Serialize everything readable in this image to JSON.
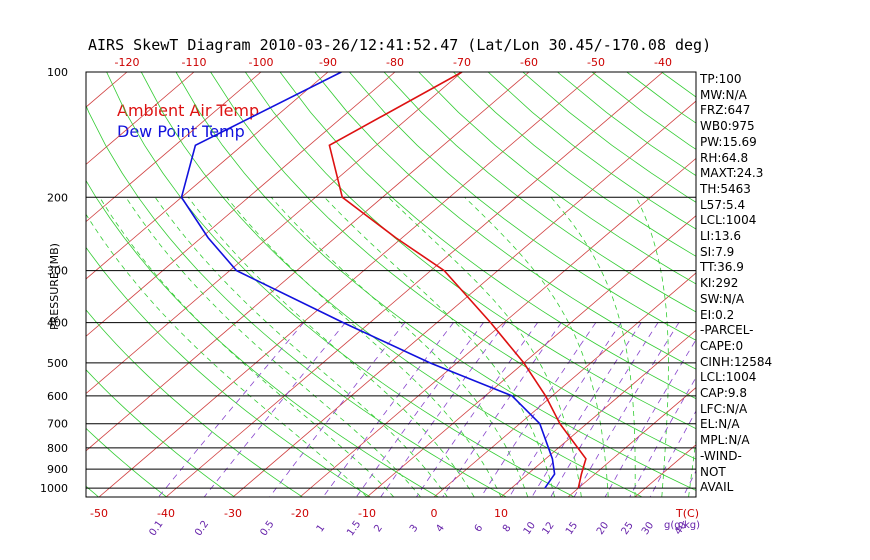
{
  "chart_data": {
    "type": "line",
    "title": "AIRS SkewT Diagram 2010-03-26/12:41:52.47 (Lat/Lon 30.45/-170.08 deg)",
    "ylabel": "PRESSURE (MB)",
    "xlabel": "T(C)",
    "mixing_ratio_label": "g(g/kg)",
    "pressure_ticks": [
      100,
      200,
      300,
      400,
      500,
      600,
      700,
      800,
      900,
      1000
    ],
    "top_temp_ticks": [
      -120,
      -110,
      -100,
      -90,
      -80,
      -70,
      -60,
      -50,
      -40
    ],
    "bottom_temp_ticks": [
      -50,
      -40,
      -30,
      -20,
      -10,
      0,
      10
    ],
    "mixing_ratio_ticks": [
      "0.1",
      "0.2",
      "0.5",
      "1",
      "1.5",
      "2",
      "3",
      "4",
      "6",
      "8",
      "10",
      "12",
      "15",
      "20",
      "25",
      "30",
      "40"
    ],
    "legend": [
      "Ambient Air Temp",
      "Dew Point Temp"
    ],
    "series": [
      {
        "name": "Ambient Air Temp",
        "color": "#dd1111",
        "points": [
          {
            "p": 100,
            "t": -70
          },
          {
            "p": 150,
            "t": -77
          },
          {
            "p": 200,
            "t": -66
          },
          {
            "p": 250,
            "t": -51
          },
          {
            "p": 300,
            "t": -38
          },
          {
            "p": 400,
            "t": -22
          },
          {
            "p": 500,
            "t": -10
          },
          {
            "p": 600,
            "t": -1
          },
          {
            "p": 700,
            "t": 6
          },
          {
            "p": 850,
            "t": 16
          },
          {
            "p": 925,
            "t": 18
          },
          {
            "p": 1000,
            "t": 20
          }
        ]
      },
      {
        "name": "Dew Point Temp",
        "color": "#1111dd",
        "points": [
          {
            "p": 100,
            "t": -88
          },
          {
            "p": 150,
            "t": -97
          },
          {
            "p": 200,
            "t": -90
          },
          {
            "p": 250,
            "t": -79
          },
          {
            "p": 300,
            "t": -69
          },
          {
            "p": 400,
            "t": -44
          },
          {
            "p": 500,
            "t": -24
          },
          {
            "p": 600,
            "t": -6
          },
          {
            "p": 700,
            "t": 3
          },
          {
            "p": 850,
            "t": 11
          },
          {
            "p": 925,
            "t": 14
          },
          {
            "p": 1000,
            "t": 15
          }
        ]
      }
    ]
  },
  "sidebar": {
    "items": [
      "TP:100",
      "MW:N/A",
      "FRZ:647",
      "WB0:975",
      "PW:15.69",
      "RH:64.8",
      "MAXT:24.3",
      "TH:5463",
      "L57:5.4",
      "LCL:1004",
      "LI:13.6",
      "SI:7.9",
      "TT:36.9",
      "KI:292",
      "SW:N/A",
      "EI:0.2",
      "-PARCEL-",
      "CAPE:0",
      "CINH:12584",
      "LCL:1004",
      "CAP:9.8",
      "LFC:N/A",
      "EL:N/A",
      "MPL:N/A",
      "-WIND-",
      "NOT",
      "AVAIL"
    ]
  }
}
